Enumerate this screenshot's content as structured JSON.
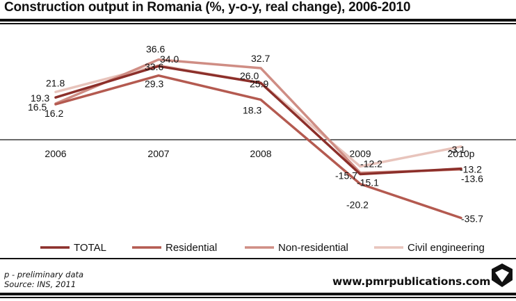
{
  "title": "Construction output in Romania (%, y-o-y, real change), 2006-2010",
  "footnote_preliminary": "p - preliminary data",
  "footnote_source": "Source: INS, 2011",
  "website": "www.pmrpublications.com",
  "logo_icon": "cube-logo-icon",
  "chart_data": {
    "type": "line",
    "categories": [
      "2006",
      "2007",
      "2008",
      "2009",
      "2010p"
    ],
    "ylim": [
      -40,
      40
    ],
    "grid": false,
    "legend_position": "bottom",
    "series": [
      {
        "name": "TOTAL",
        "color": "#8c2f2a",
        "values": [
          19.3,
          33.6,
          25.9,
          -15.7,
          -13.2
        ]
      },
      {
        "name": "Residential",
        "color": "#b45a50",
        "values": [
          16.2,
          29.3,
          18.3,
          -20.2,
          -35.7
        ]
      },
      {
        "name": "Non-residential",
        "color": "#cf8d84",
        "values": [
          16.5,
          36.6,
          32.7,
          -15.1,
          -13.6
        ]
      },
      {
        "name": "Civil engineering",
        "color": "#e8c4bc",
        "values": [
          21.8,
          34.0,
          26.0,
          -12.2,
          -3.1
        ]
      }
    ]
  }
}
